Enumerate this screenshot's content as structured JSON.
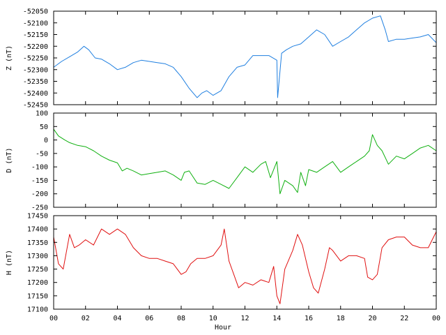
{
  "chart_data": [
    {
      "type": "line",
      "ylabel": "Z (nT)",
      "ylim": [
        -52450,
        -52050
      ],
      "yticks": [
        "-52050",
        "-52100",
        "-52150",
        "-52200",
        "-52250",
        "-52300",
        "-52350",
        "-52400",
        "-52450"
      ],
      "yticks_values": [
        -52050,
        -52100,
        -52150,
        -52200,
        -52250,
        -52300,
        -52350,
        -52400,
        -52450
      ],
      "color": "#1f7fe0",
      "series": [
        {
          "x": [
            0,
            0.5,
            1,
            1.5,
            1.9,
            2.2,
            2.6,
            3,
            3.5,
            4,
            4.5,
            5,
            5.5,
            6,
            6.5,
            7,
            7.5,
            8,
            8.5,
            9,
            9.3,
            9.6,
            10,
            10.5,
            11,
            11.5,
            12,
            12.5,
            13,
            13.5,
            14,
            14.05,
            14.3,
            14.6,
            15,
            15.5,
            16,
            16.5,
            17,
            17.5,
            18,
            18.5,
            19,
            19.5,
            20,
            20.5,
            20.8,
            21,
            21.5,
            22,
            22.5,
            23,
            23.5,
            24
          ],
          "values": [
            -52290,
            -52265,
            -52245,
            -52225,
            -52200,
            -52215,
            -52250,
            -52255,
            -52275,
            -52300,
            -52290,
            -52270,
            -52260,
            -52265,
            -52270,
            -52275,
            -52290,
            -52330,
            -52380,
            -52420,
            -52400,
            -52390,
            -52410,
            -52390,
            -52330,
            -52290,
            -52280,
            -52240,
            -52240,
            -52240,
            -52260,
            -52420,
            -52230,
            -52215,
            -52200,
            -52190,
            -52160,
            -52130,
            -52150,
            -52200,
            -52180,
            -52160,
            -52130,
            -52100,
            -52080,
            -52070,
            -52130,
            -52180,
            -52170,
            -52170,
            -52165,
            -52160,
            -52150,
            -52185
          ]
        }
      ]
    },
    {
      "type": "line",
      "ylabel": "D (nT)",
      "ylim": [
        -250,
        100
      ],
      "yticks": [
        "100",
        "50",
        "0",
        "-50",
        "-100",
        "-150",
        "-200",
        "-250"
      ],
      "yticks_values": [
        100,
        50,
        0,
        -50,
        -100,
        -150,
        -200,
        -250
      ],
      "color": "#10b010",
      "series": [
        {
          "x": [
            0,
            0.3,
            0.7,
            1,
            1.5,
            2,
            2.5,
            3,
            3.5,
            4,
            4.3,
            4.6,
            5,
            5.5,
            6,
            6.5,
            7,
            7.5,
            8,
            8.2,
            8.5,
            9,
            9.5,
            10,
            10.5,
            11,
            11.5,
            12,
            12.5,
            13,
            13.3,
            13.6,
            14,
            14.2,
            14.5,
            15,
            15.3,
            15.5,
            15.8,
            16,
            16.5,
            17,
            17.5,
            18,
            18.5,
            19,
            19.5,
            19.8,
            20,
            20.3,
            20.6,
            21,
            21.5,
            22,
            22.5,
            23,
            23.5,
            24
          ],
          "values": [
            40,
            15,
            0,
            -10,
            -20,
            -25,
            -40,
            -60,
            -75,
            -85,
            -115,
            -105,
            -115,
            -130,
            -125,
            -120,
            -115,
            -130,
            -150,
            -120,
            -115,
            -160,
            -165,
            -150,
            -165,
            -180,
            -140,
            -100,
            -120,
            -90,
            -80,
            -140,
            -80,
            -200,
            -150,
            -170,
            -195,
            -120,
            -170,
            -110,
            -120,
            -100,
            -80,
            -120,
            -100,
            -80,
            -60,
            -40,
            20,
            -20,
            -40,
            -90,
            -60,
            -70,
            -50,
            -30,
            -20,
            -40
          ]
        }
      ]
    },
    {
      "type": "line",
      "ylabel": "H (nT)",
      "ylim": [
        17100,
        17450
      ],
      "yticks": [
        "17450",
        "17400",
        "17350",
        "17300",
        "17250",
        "17200",
        "17150",
        "17100"
      ],
      "yticks_values": [
        17450,
        17400,
        17350,
        17300,
        17250,
        17200,
        17150,
        17100
      ],
      "color": "#e01010",
      "series": [
        {
          "x": [
            0,
            0.3,
            0.6,
            1,
            1.3,
            1.6,
            2,
            2.5,
            3,
            3.5,
            4,
            4.5,
            5,
            5.5,
            6,
            6.5,
            7,
            7.5,
            8,
            8.3,
            8.6,
            9,
            9.5,
            10,
            10.5,
            10.7,
            11,
            11.3,
            11.6,
            12,
            12.5,
            13,
            13.5,
            13.8,
            14,
            14.2,
            14.5,
            15,
            15.3,
            15.6,
            16,
            16.3,
            16.6,
            17,
            17.3,
            17.5,
            18,
            18.5,
            19,
            19.5,
            19.7,
            20,
            20.3,
            20.6,
            21,
            21.5,
            22,
            22.5,
            23,
            23.5,
            24
          ],
          "values": [
            17370,
            17270,
            17250,
            17380,
            17330,
            17340,
            17360,
            17340,
            17400,
            17380,
            17400,
            17380,
            17330,
            17300,
            17290,
            17290,
            17280,
            17270,
            17230,
            17240,
            17270,
            17290,
            17290,
            17300,
            17340,
            17400,
            17280,
            17230,
            17180,
            17200,
            17190,
            17210,
            17200,
            17260,
            17150,
            17120,
            17250,
            17320,
            17380,
            17340,
            17240,
            17180,
            17160,
            17250,
            17330,
            17320,
            17280,
            17300,
            17300,
            17290,
            17220,
            17210,
            17230,
            17330,
            17360,
            17370,
            17370,
            17340,
            17330,
            17330,
            17390
          ]
        }
      ]
    }
  ],
  "xaxis": {
    "label": "Hour",
    "ticks": [
      "00",
      "02",
      "04",
      "06",
      "08",
      "10",
      "12",
      "14",
      "16",
      "18",
      "20",
      "22",
      "00"
    ],
    "tick_values": [
      0,
      2,
      4,
      6,
      8,
      10,
      12,
      14,
      16,
      18,
      20,
      22,
      24
    ],
    "xlim": [
      0,
      24
    ]
  }
}
